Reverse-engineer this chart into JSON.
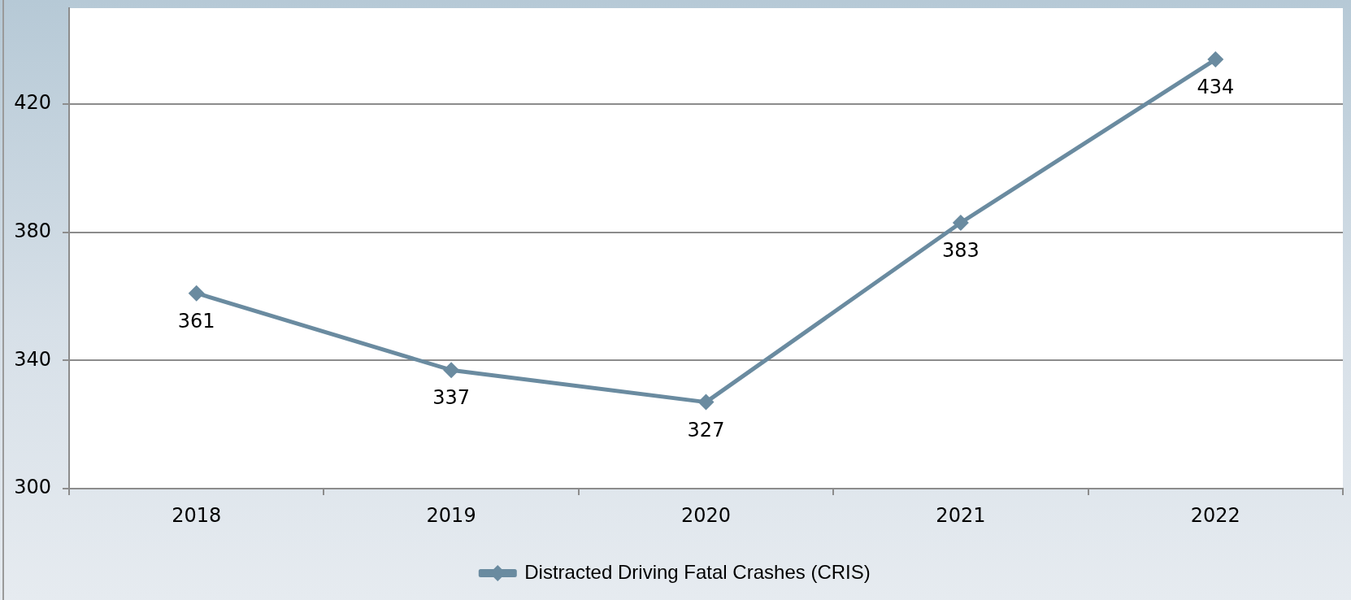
{
  "chart_data": {
    "type": "line",
    "categories": [
      "2018",
      "2019",
      "2020",
      "2021",
      "2022"
    ],
    "series": [
      {
        "name": "Distracted Driving Fatal Crashes (CRIS)",
        "color": "#6a8ba0",
        "values": [
          361,
          337,
          327,
          383,
          434
        ]
      }
    ],
    "ylim": [
      300,
      450
    ],
    "yticks": [
      300,
      340,
      380,
      420
    ],
    "grid": "y",
    "legend": "bottom",
    "marker": "diamond",
    "line_style": "solid",
    "data_labels": true
  }
}
